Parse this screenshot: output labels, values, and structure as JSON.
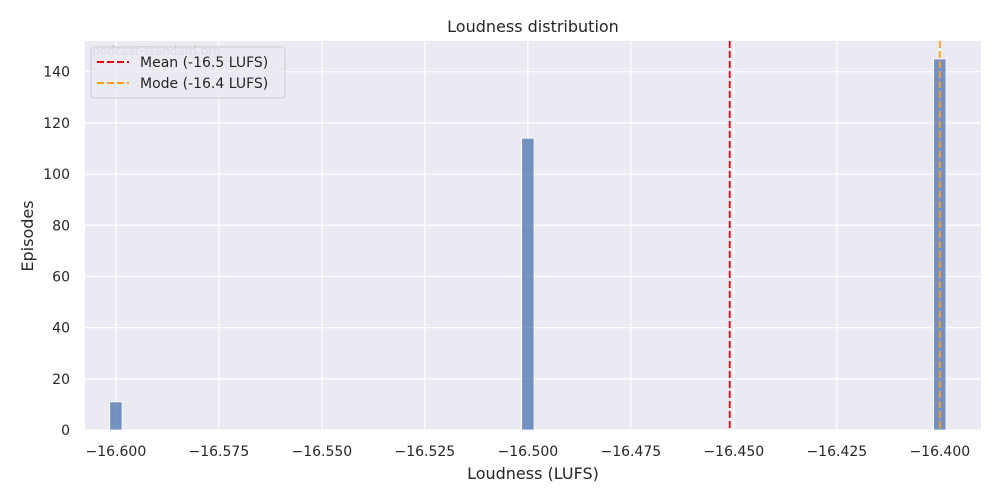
{
  "chart_data": {
    "type": "bar",
    "title": "Loudness distribution",
    "xlabel": "Loudness (LUFS)",
    "ylabel": "Episodes",
    "xlim": [
      -16.6075,
      -16.39
    ],
    "ylim": [
      0,
      152
    ],
    "grid": true,
    "watermark": "podcast-standard.org",
    "bar_width": 0.003,
    "bars": [
      {
        "x": -16.6,
        "value": 11
      },
      {
        "x": -16.5,
        "value": 114
      },
      {
        "x": -16.4,
        "value": 145
      }
    ],
    "x_ticks": [
      {
        "value": -16.6,
        "label": "−16.600"
      },
      {
        "value": -16.575,
        "label": "−16.575"
      },
      {
        "value": -16.55,
        "label": "−16.550"
      },
      {
        "value": -16.525,
        "label": "−16.525"
      },
      {
        "value": -16.5,
        "label": "−16.500"
      },
      {
        "value": -16.475,
        "label": "−16.475"
      },
      {
        "value": -16.45,
        "label": "−16.450"
      },
      {
        "value": -16.425,
        "label": "−16.425"
      },
      {
        "value": -16.4,
        "label": "−16.400"
      }
    ],
    "y_ticks": [
      {
        "value": 0,
        "label": "0"
      },
      {
        "value": 20,
        "label": "20"
      },
      {
        "value": 40,
        "label": "40"
      },
      {
        "value": 60,
        "label": "60"
      },
      {
        "value": 80,
        "label": "80"
      },
      {
        "value": 100,
        "label": "100"
      },
      {
        "value": 120,
        "label": "120"
      },
      {
        "value": 140,
        "label": "140"
      }
    ],
    "reference_lines": [
      {
        "x": -16.451,
        "label": "Mean (-16.5 LUFS)",
        "color": "#e8000b",
        "style": "dashed"
      },
      {
        "x": -16.4,
        "label": "Mode (-16.4 LUFS)",
        "color": "#ff9f1c",
        "style": "dashed"
      }
    ],
    "legend_position": "top-left",
    "colors": {
      "bar": "#4c72b0",
      "background": "#eaeaf2",
      "grid": "#ffffff"
    }
  }
}
